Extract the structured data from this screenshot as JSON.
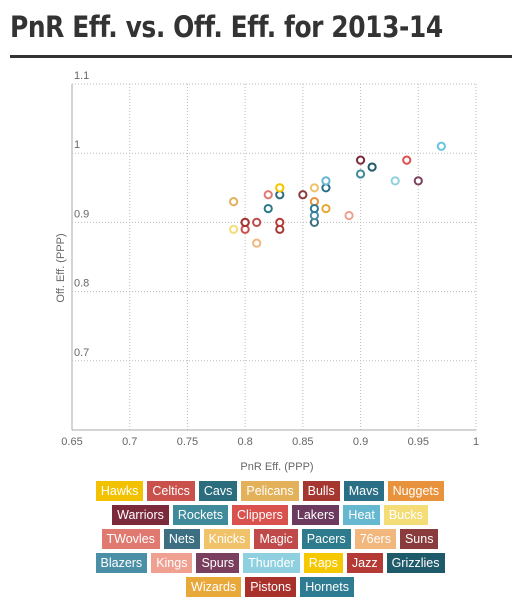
{
  "title": "PnR Eff. vs. Off. Eff. for 2013-14",
  "chart_data": {
    "type": "scatter",
    "title": "PnR Eff. vs. Off. Eff. for 2013-14",
    "xlabel": "PnR Eff. (PPP)",
    "ylabel": "Off. Eff. (PPP)",
    "xlim": [
      0.65,
      1.0
    ],
    "ylim": [
      0.6,
      1.1
    ],
    "xticks": [
      "0.65",
      "0.7",
      "0.75",
      "0.8",
      "0.85",
      "0.9",
      "0.95",
      "1"
    ],
    "yticks": [
      "0.7",
      "0.8",
      "0.9",
      "1",
      "1.1"
    ],
    "grid": true,
    "legend_position": "bottom",
    "series": [
      {
        "name": "Hawks",
        "color": "#f2c200",
        "x": [
          0.83
        ],
        "y": [
          0.95
        ]
      },
      {
        "name": "Celtics",
        "color": "#c9504b",
        "x": [
          0.8
        ],
        "y": [
          0.89
        ]
      },
      {
        "name": "Cavs",
        "color": "#2c6d7d",
        "x": [
          0.83
        ],
        "y": [
          0.94
        ]
      },
      {
        "name": "Pelicans",
        "color": "#e3b15a",
        "x": [
          0.79
        ],
        "y": [
          0.93
        ]
      },
      {
        "name": "Bulls",
        "color": "#a63630",
        "x": [
          0.83
        ],
        "y": [
          0.89
        ]
      },
      {
        "name": "Mavs",
        "color": "#2a6f86",
        "x": [
          0.87
        ],
        "y": [
          0.95
        ]
      },
      {
        "name": "Nuggets",
        "color": "#e8923c",
        "x": [
          0.86
        ],
        "y": [
          0.93
        ]
      },
      {
        "name": "Warriors",
        "color": "#7a2a3b",
        "x": [
          0.9
        ],
        "y": [
          0.99
        ]
      },
      {
        "name": "Rockets",
        "color": "#3f8a9b",
        "x": [
          0.9
        ],
        "y": [
          0.97
        ]
      },
      {
        "name": "Clippers",
        "color": "#d9524e",
        "x": [
          0.94
        ],
        "y": [
          0.99
        ]
      },
      {
        "name": "Lakers",
        "color": "#6b3a5e",
        "x": [
          0.8
        ],
        "y": [
          0.9
        ]
      },
      {
        "name": "Heat",
        "color": "#66b8d0",
        "x": [
          0.87
        ],
        "y": [
          0.96
        ]
      },
      {
        "name": "Bucks",
        "color": "#f4dc76",
        "x": [
          0.79
        ],
        "y": [
          0.89
        ]
      },
      {
        "name": "TWovles",
        "color": "#e07a70",
        "x": [
          0.82
        ],
        "y": [
          0.94
        ]
      },
      {
        "name": "Nets",
        "color": "#3d6f83",
        "x": [
          0.86
        ],
        "y": [
          0.9
        ]
      },
      {
        "name": "Knicks",
        "color": "#f0c36a",
        "x": [
          0.86
        ],
        "y": [
          0.95
        ]
      },
      {
        "name": "Magic",
        "color": "#c04a4a",
        "x": [
          0.81
        ],
        "y": [
          0.9
        ]
      },
      {
        "name": "Pacers",
        "color": "#2f7b8e",
        "x": [
          0.82
        ],
        "y": [
          0.92
        ]
      },
      {
        "name": "76ers",
        "color": "#f2b77c",
        "x": [
          0.81
        ],
        "y": [
          0.87
        ]
      },
      {
        "name": "Suns",
        "color": "#8a3b3b",
        "x": [
          0.85
        ],
        "y": [
          0.94
        ]
      },
      {
        "name": "Blazers",
        "color": "#4b8fa6",
        "x": [
          0.86
        ],
        "y": [
          0.91
        ]
      },
      {
        "name": "Kings",
        "color": "#f0a090",
        "x": [
          0.89
        ],
        "y": [
          0.91
        ]
      },
      {
        "name": "Spurs",
        "color": "#7a3f5e",
        "x": [
          0.95
        ],
        "y": [
          0.96
        ]
      },
      {
        "name": "Thunder",
        "color": "#8fd0e0",
        "x": [
          0.93
        ],
        "y": [
          0.96
        ]
      },
      {
        "name": "Raps",
        "color": "#f5c800",
        "x": [
          0.83
        ],
        "y": [
          0.95
        ]
      },
      {
        "name": "Jazz",
        "color": "#b53a36",
        "x": [
          0.83
        ],
        "y": [
          0.9
        ]
      },
      {
        "name": "Grizzlies",
        "color": "#1f5a6b",
        "x": [
          0.91
        ],
        "y": [
          0.98
        ]
      },
      {
        "name": "Wizards",
        "color": "#e8a93a",
        "x": [
          0.87
        ],
        "y": [
          0.92
        ]
      },
      {
        "name": "Pistons",
        "color": "#a8312c",
        "x": [
          0.8
        ],
        "y": [
          0.9
        ]
      },
      {
        "name": "Hornets",
        "color": "#2f7c92",
        "x": [
          0.86
        ],
        "y": [
          0.92
        ]
      }
    ],
    "extra_points": [
      {
        "color": "#66c6dc",
        "x": 0.97,
        "y": 1.01
      }
    ]
  }
}
